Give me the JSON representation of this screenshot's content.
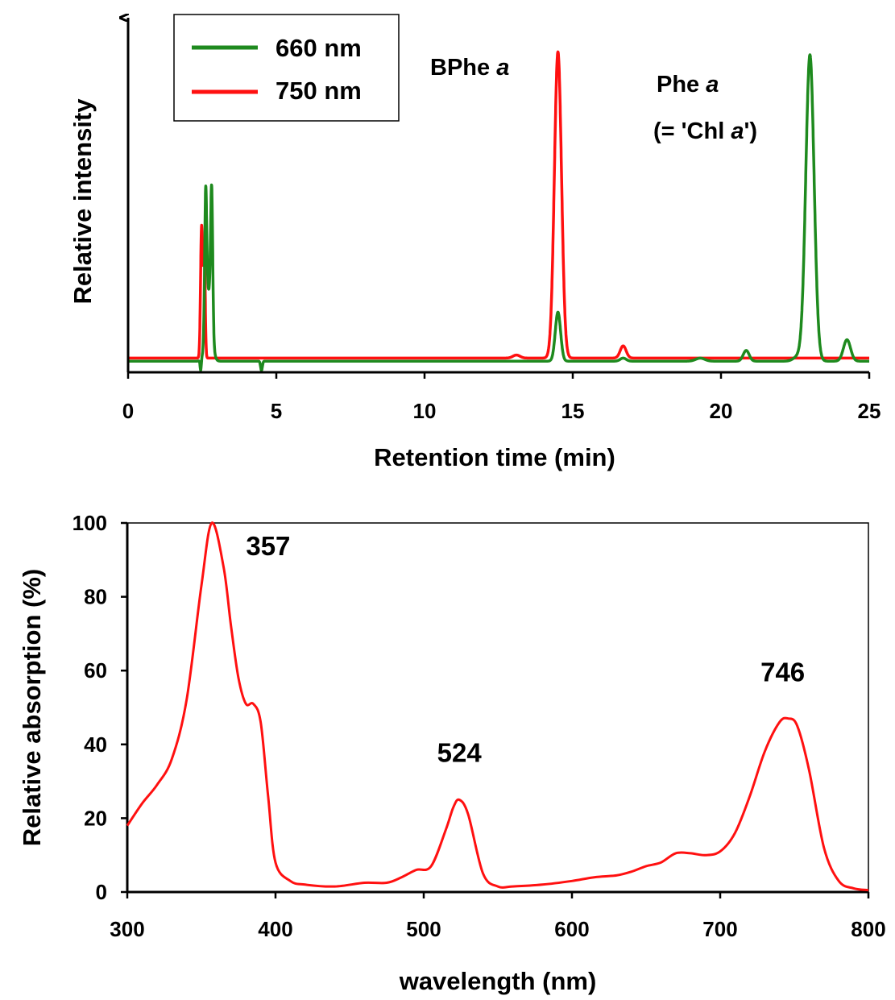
{
  "chart_data": [
    {
      "type": "line",
      "xlabel": "Retention time (min)",
      "ylabel": "Relative intensity",
      "xlim": [
        0,
        25
      ],
      "ylim": [
        0,
        100
      ],
      "y_ticks_shown": false,
      "xticks": [
        0,
        5,
        10,
        15,
        20,
        25
      ],
      "legend": {
        "placement": "top-left"
      },
      "annotations": [
        {
          "parts": [
            {
              "t": "BPhe "
            },
            {
              "t": "a",
              "italic": true
            }
          ],
          "x": 14.5
        },
        {
          "parts": [
            {
              "t": "Phe "
            },
            {
              "t": "a",
              "italic": true
            }
          ],
          "x": 23.0
        },
        {
          "parts": [
            {
              "t": "(= 'Chl "
            },
            {
              "t": "a",
              "italic": true
            },
            {
              "t": "')"
            }
          ],
          "x": 23.0
        }
      ],
      "series": [
        {
          "name": "660 nm",
          "color": "#1e8a1e",
          "baseline": 1,
          "peaks": [
            [
              2.62,
              45,
              0.035
            ],
            [
              2.82,
              44,
              0.035
            ],
            [
              2.72,
              22,
              0.1
            ],
            [
              14.5,
              16,
              0.09
            ],
            [
              16.7,
              1,
              0.1
            ],
            [
              19.3,
              1,
              0.15
            ],
            [
              20.85,
              3.5,
              0.1
            ],
            [
              22.6,
              1.5,
              0.15
            ],
            [
              23.0,
              100,
              0.14
            ],
            [
              24.25,
              7,
              0.12
            ]
          ],
          "dips": [
            [
              2.45,
              -3.5,
              0.02
            ],
            [
              2.65,
              -3.5,
              0.02
            ],
            [
              4.5,
              -3,
              0.03
            ]
          ]
        },
        {
          "name": "750 nm",
          "color": "#ff1010",
          "baseline": 2,
          "peaks": [
            [
              2.48,
              43,
              0.035
            ],
            [
              2.57,
              36,
              0.03
            ],
            [
              13.1,
              1,
              0.12
            ],
            [
              14.5,
              100,
              0.12
            ],
            [
              16.7,
              4,
              0.1
            ]
          ],
          "dips": []
        }
      ]
    },
    {
      "type": "line",
      "xlabel": "wavelength (nm)",
      "ylabel": "Relative absorption (%)",
      "xlim": [
        300,
        800
      ],
      "ylim": [
        0,
        100
      ],
      "xticks": [
        300,
        400,
        500,
        600,
        700,
        800
      ],
      "yticks": [
        0,
        20,
        40,
        60,
        80,
        100
      ],
      "peak_labels": [
        {
          "text": "357",
          "x": 357,
          "y": 100
        },
        {
          "text": "524",
          "x": 524,
          "y": 25
        },
        {
          "text": "746",
          "x": 746,
          "y": 47
        }
      ],
      "series": [
        {
          "color": "#ff1010",
          "x": [
            300,
            310,
            320,
            330,
            340,
            350,
            357,
            365,
            370,
            375,
            380,
            385,
            390,
            395,
            400,
            410,
            420,
            440,
            460,
            475,
            485,
            495,
            505,
            515,
            520,
            524,
            530,
            540,
            550,
            560,
            580,
            600,
            615,
            630,
            640,
            650,
            660,
            670,
            680,
            690,
            700,
            710,
            720,
            730,
            740,
            746,
            752,
            760,
            770,
            780,
            790,
            800
          ],
          "y": [
            18,
            24,
            29,
            36,
            52,
            83,
            100,
            88,
            72,
            58,
            51,
            51,
            46,
            26,
            8,
            3,
            2,
            1.5,
            2.5,
            2.5,
            4,
            6,
            7,
            17,
            23,
            25,
            21,
            5,
            1.5,
            1.5,
            2,
            3,
            4,
            4.5,
            5.5,
            7,
            8,
            10.5,
            10.5,
            10,
            11,
            16,
            26,
            38,
            46,
            47,
            45,
            33,
            12,
            3,
            1,
            0.5
          ]
        }
      ]
    }
  ]
}
